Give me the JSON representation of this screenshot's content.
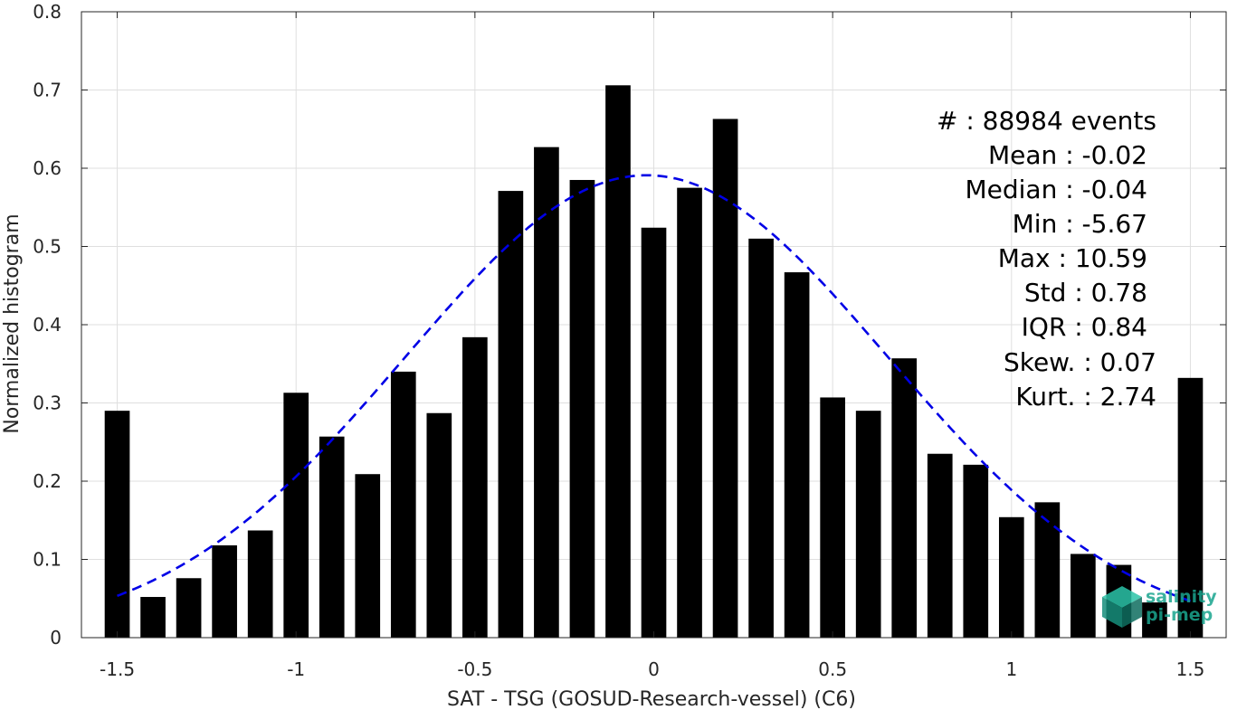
{
  "chart_data": {
    "type": "bar",
    "xlabel": "SAT - TSG (GOSUD-Research-vessel) (C6)",
    "ylabel": "Normalized histogram",
    "xlim": [
      -1.6,
      1.6
    ],
    "ylim": [
      0,
      0.8
    ],
    "grid": true,
    "bar_color": "#000000",
    "fit_color": "#0000e6",
    "x_ticks": [
      -1.5,
      -1,
      -0.5,
      0,
      0.5,
      1,
      1.5
    ],
    "x_tick_labels": [
      "-1.5",
      "-1",
      "-0.5",
      "0",
      "0.5",
      "1",
      "1.5"
    ],
    "y_ticks": [
      0,
      0.1,
      0.2,
      0.3,
      0.4,
      0.5,
      0.6,
      0.7,
      0.8
    ],
    "y_tick_labels": [
      "0",
      "0.1",
      "0.2",
      "0.3",
      "0.4",
      "0.5",
      "0.6",
      "0.7",
      "0.8"
    ],
    "bin_width": 0.1,
    "x": [
      -1.5,
      -1.4,
      -1.3,
      -1.2,
      -1.1,
      -1.0,
      -0.9,
      -0.8,
      -0.7,
      -0.6,
      -0.5,
      -0.4,
      -0.3,
      -0.2,
      -0.1,
      0.0,
      0.1,
      0.2,
      0.3,
      0.4,
      0.5,
      0.6,
      0.7,
      0.8,
      0.9,
      1.0,
      1.1,
      1.2,
      1.3,
      1.4,
      1.5
    ],
    "values": [
      0.29,
      0.052,
      0.076,
      0.118,
      0.137,
      0.313,
      0.257,
      0.209,
      0.34,
      0.287,
      0.384,
      0.571,
      0.627,
      0.585,
      0.706,
      0.524,
      0.575,
      0.663,
      0.51,
      0.467,
      0.307,
      0.29,
      0.357,
      0.235,
      0.221,
      0.154,
      0.173,
      0.107,
      0.093,
      0.045,
      0.332
    ],
    "fit": {
      "type": "gaussian",
      "mean": -0.02,
      "std": 0.675,
      "x_range": [
        -1.5,
        1.5
      ]
    },
    "stats": [
      {
        "label": "#  : 88984 events"
      },
      {
        "label": "Mean : -0.02"
      },
      {
        "label": "Median : -0.04"
      },
      {
        "label": "Min : -5.67"
      },
      {
        "label": "Max : 10.59"
      },
      {
        "label": "Std : 0.78"
      },
      {
        "label": "IQR : 0.84"
      },
      {
        "label": "Skew. : 0.07"
      },
      {
        "label": "Kurt. : 2.74"
      }
    ]
  },
  "logo": {
    "line1": "salinity",
    "line2": "pi-mep"
  }
}
